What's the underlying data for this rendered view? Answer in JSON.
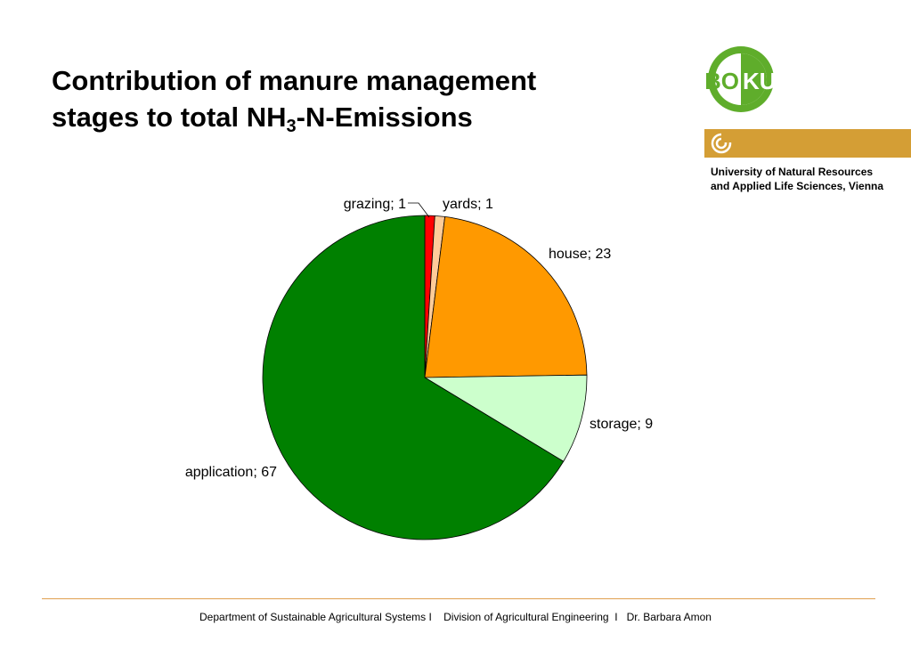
{
  "title": {
    "line1": "Contribution of manure management",
    "line2_pre": "stages to total NH",
    "line2_sub": "3",
    "line2_post": "-N-Emissions"
  },
  "logo": {
    "letters_left": "BO",
    "letters_right": "KU",
    "green": "#5fad2b",
    "gold": "#d49e35"
  },
  "university": {
    "line1": "University of Natural Resources",
    "line2": "and Applied Life Sciences, Vienna"
  },
  "chart_data": {
    "type": "pie",
    "start_angle_deg": 0,
    "direction": "clockwise",
    "slices": [
      {
        "label": "grazing",
        "value": 1,
        "display": "grazing; 1",
        "color": "#ff0000"
      },
      {
        "label": "yards",
        "value": 1,
        "display": "yards; 1",
        "color": "#ffcc99"
      },
      {
        "label": "house",
        "value": 23,
        "display": "house; 23",
        "color": "#ff9900"
      },
      {
        "label": "storage",
        "value": 9,
        "display": "storage; 9",
        "color": "#ccffcc"
      },
      {
        "label": "application",
        "value": 67,
        "display": "application; 67",
        "color": "#008000"
      }
    ]
  },
  "footer": {
    "text": "Department of Sustainable Agricultural Systems I    Division of Agricultural Engineering  I   Dr. Barbara Amon"
  }
}
